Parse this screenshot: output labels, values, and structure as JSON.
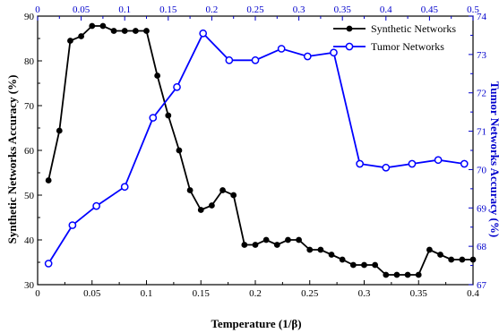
{
  "chart_data": {
    "type": "line",
    "title": "",
    "xlabel": "Temperature (1/β)",
    "ylabel_left": "Synthetic Networks Accuracy (%)",
    "ylabel_right": "Tumor Networks Accuracy (%)",
    "x_bottom": {
      "range": [
        0,
        0.4
      ],
      "ticks": [
        "0",
        "0.05",
        "0.1",
        "0.15",
        "0.2",
        "0.25",
        "0.3",
        "0.35",
        "0.4"
      ]
    },
    "x_top": {
      "range": [
        0,
        0.5
      ],
      "ticks": [
        "0",
        "0.05",
        "0.1",
        "0.15",
        "0.2",
        "0.25",
        "0.3",
        "0.35",
        "0.4",
        "0.45",
        "0.5"
      ]
    },
    "y_left": {
      "range": [
        30,
        90
      ],
      "ticks": [
        "30",
        "40",
        "50",
        "60",
        "70",
        "80",
        "90"
      ]
    },
    "y_right": {
      "range": [
        67,
        74
      ],
      "ticks": [
        "67",
        "68",
        "69",
        "70",
        "71",
        "72",
        "73",
        "74"
      ]
    },
    "legend_position": "top-right",
    "series": [
      {
        "name": "Synthetic Networks",
        "color": "#000000",
        "marker": "filled-circle",
        "x_axis": "bottom",
        "y_axis": "left",
        "x": [
          0.01,
          0.02,
          0.03,
          0.04,
          0.05,
          0.06,
          0.07,
          0.08,
          0.09,
          0.1,
          0.11,
          0.12,
          0.13,
          0.14,
          0.15,
          0.16,
          0.17,
          0.18,
          0.19,
          0.2,
          0.21,
          0.22,
          0.23,
          0.24,
          0.25,
          0.26,
          0.27,
          0.28,
          0.29,
          0.3,
          0.31,
          0.32,
          0.33,
          0.34,
          0.35,
          0.36,
          0.37,
          0.38,
          0.39,
          0.4
        ],
        "values": [
          53.3,
          64.4,
          84.5,
          85.5,
          87.8,
          87.8,
          86.7,
          86.7,
          86.7,
          86.7,
          76.7,
          67.8,
          60.0,
          51.1,
          46.7,
          47.7,
          51.1,
          50.0,
          38.9,
          38.9,
          40.0,
          38.9,
          40.0,
          40.0,
          37.8,
          37.8,
          36.7,
          35.6,
          34.4,
          34.4,
          34.4,
          32.2,
          32.2,
          32.2,
          32.2,
          37.8,
          36.7,
          35.6,
          35.6,
          35.6
        ]
      },
      {
        "name": "Tumor Networks",
        "color": "#0000ff",
        "marker": "open-circle",
        "x_axis": "top",
        "y_axis": "right",
        "x": [
          0.0125,
          0.04,
          0.0675,
          0.1,
          0.1325,
          0.16,
          0.19,
          0.22,
          0.25,
          0.28,
          0.31,
          0.34,
          0.37,
          0.4,
          0.43,
          0.46,
          0.49
        ],
        "values": [
          67.55,
          68.55,
          69.05,
          69.55,
          71.35,
          72.15,
          73.55,
          72.85,
          72.85,
          73.15,
          72.95,
          73.05,
          70.15,
          70.05,
          70.15,
          70.25,
          70.15
        ]
      }
    ]
  }
}
